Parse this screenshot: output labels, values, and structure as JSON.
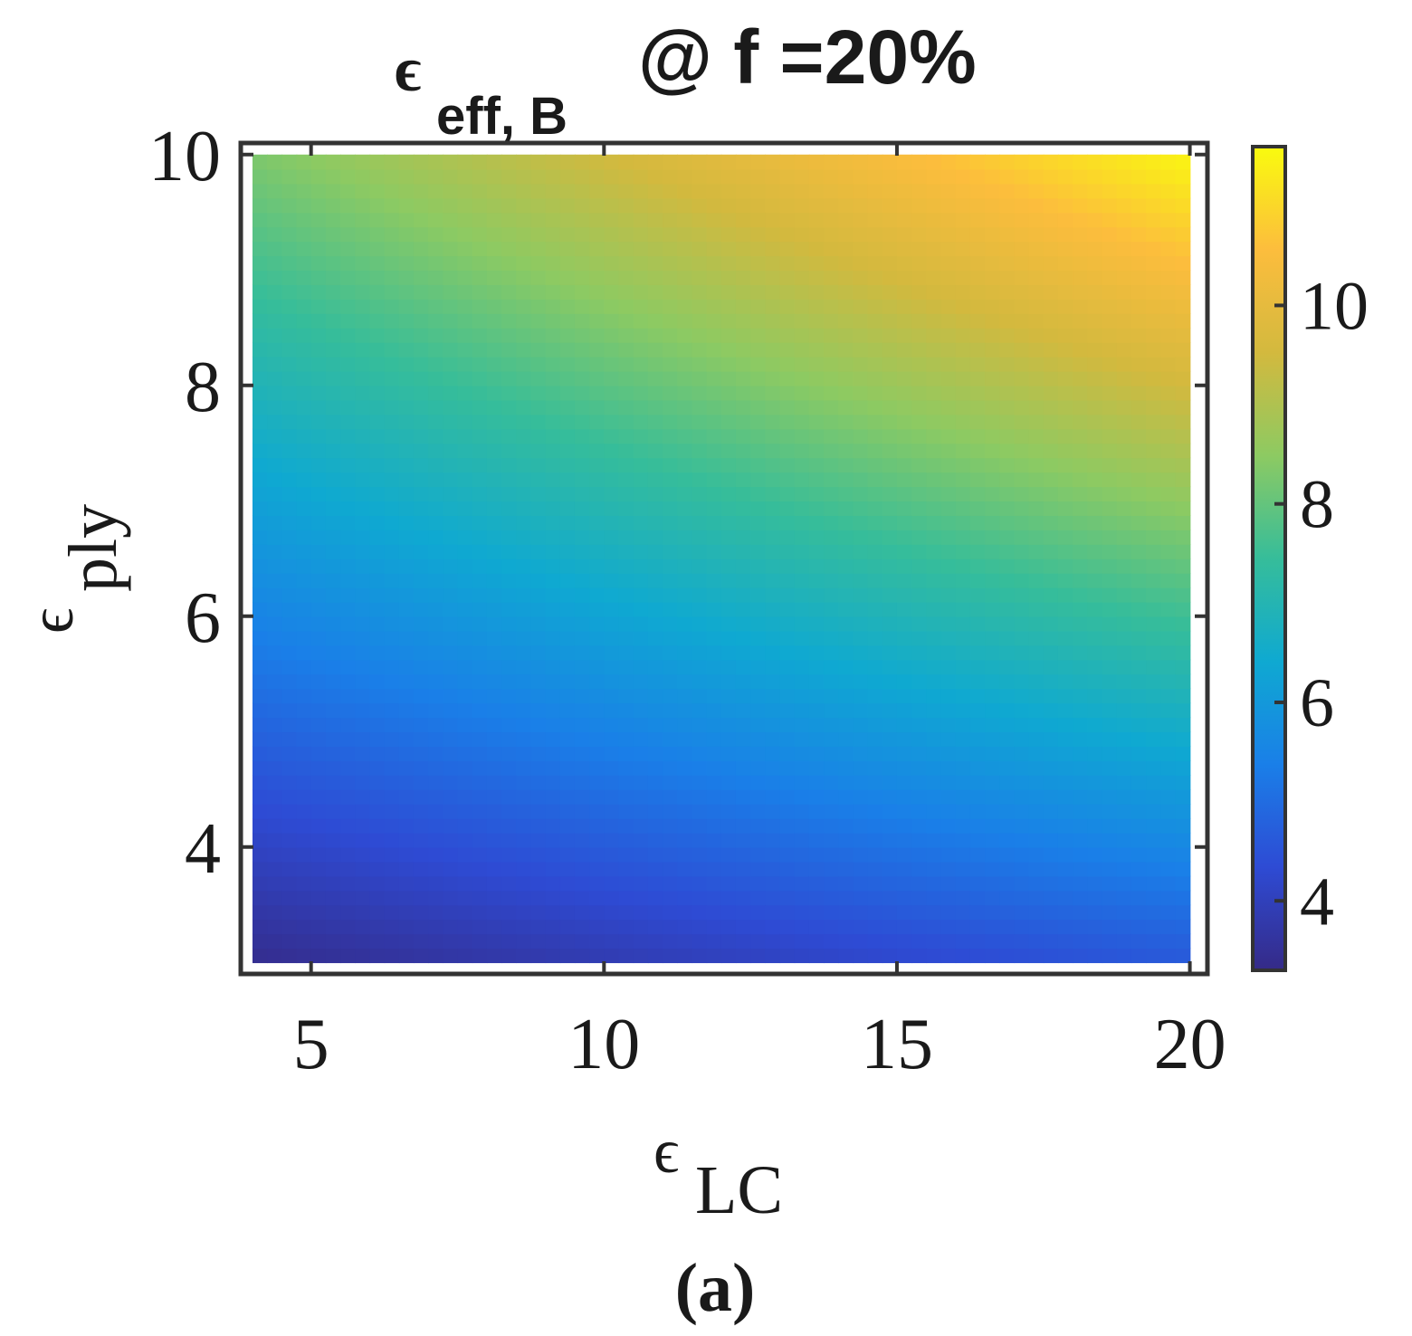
{
  "chart_data": {
    "type": "heatmap",
    "title": {
      "symbol": "ϵ",
      "subscript": "eff, B",
      "suffix": "@ f =20%"
    },
    "xlabel": {
      "symbol": "ϵ",
      "subscript": "LC"
    },
    "ylabel": {
      "symbol": "ϵ",
      "subscript": "ply"
    },
    "xlim": [
      3.8,
      20.3
    ],
    "ylim": [
      2.9,
      10.1
    ],
    "x_data_range": [
      4,
      20
    ],
    "y_data_range": [
      3,
      10
    ],
    "xticks": [
      5,
      10,
      15,
      20
    ],
    "xtick_labels": [
      "5",
      "10",
      "15",
      "20"
    ],
    "yticks": [
      4,
      6,
      8,
      10
    ],
    "ytick_labels": [
      "4",
      "6",
      "8",
      "10"
    ],
    "corner_values": {
      "x4_y3": 3.4,
      "x20_y3": 4.6,
      "x4_y10": 8.3,
      "x20_y10": 11.5
    },
    "colorbar": {
      "colormap": "parula",
      "clim": [
        3.3,
        11.6
      ],
      "ticks": [
        4,
        6,
        8,
        10
      ],
      "tick_labels": [
        "4",
        "6",
        "8",
        "10"
      ]
    },
    "grid": false
  },
  "caption": "(a)",
  "colors": {
    "frame": "#333333",
    "text": "#1a1a1a",
    "parula": [
      "#352a87",
      "#2e4bd4",
      "#1a7fe8",
      "#0fa9d1",
      "#36bd9a",
      "#8dca62",
      "#d3b93e",
      "#fcbd3d",
      "#f9fb0e"
    ]
  }
}
